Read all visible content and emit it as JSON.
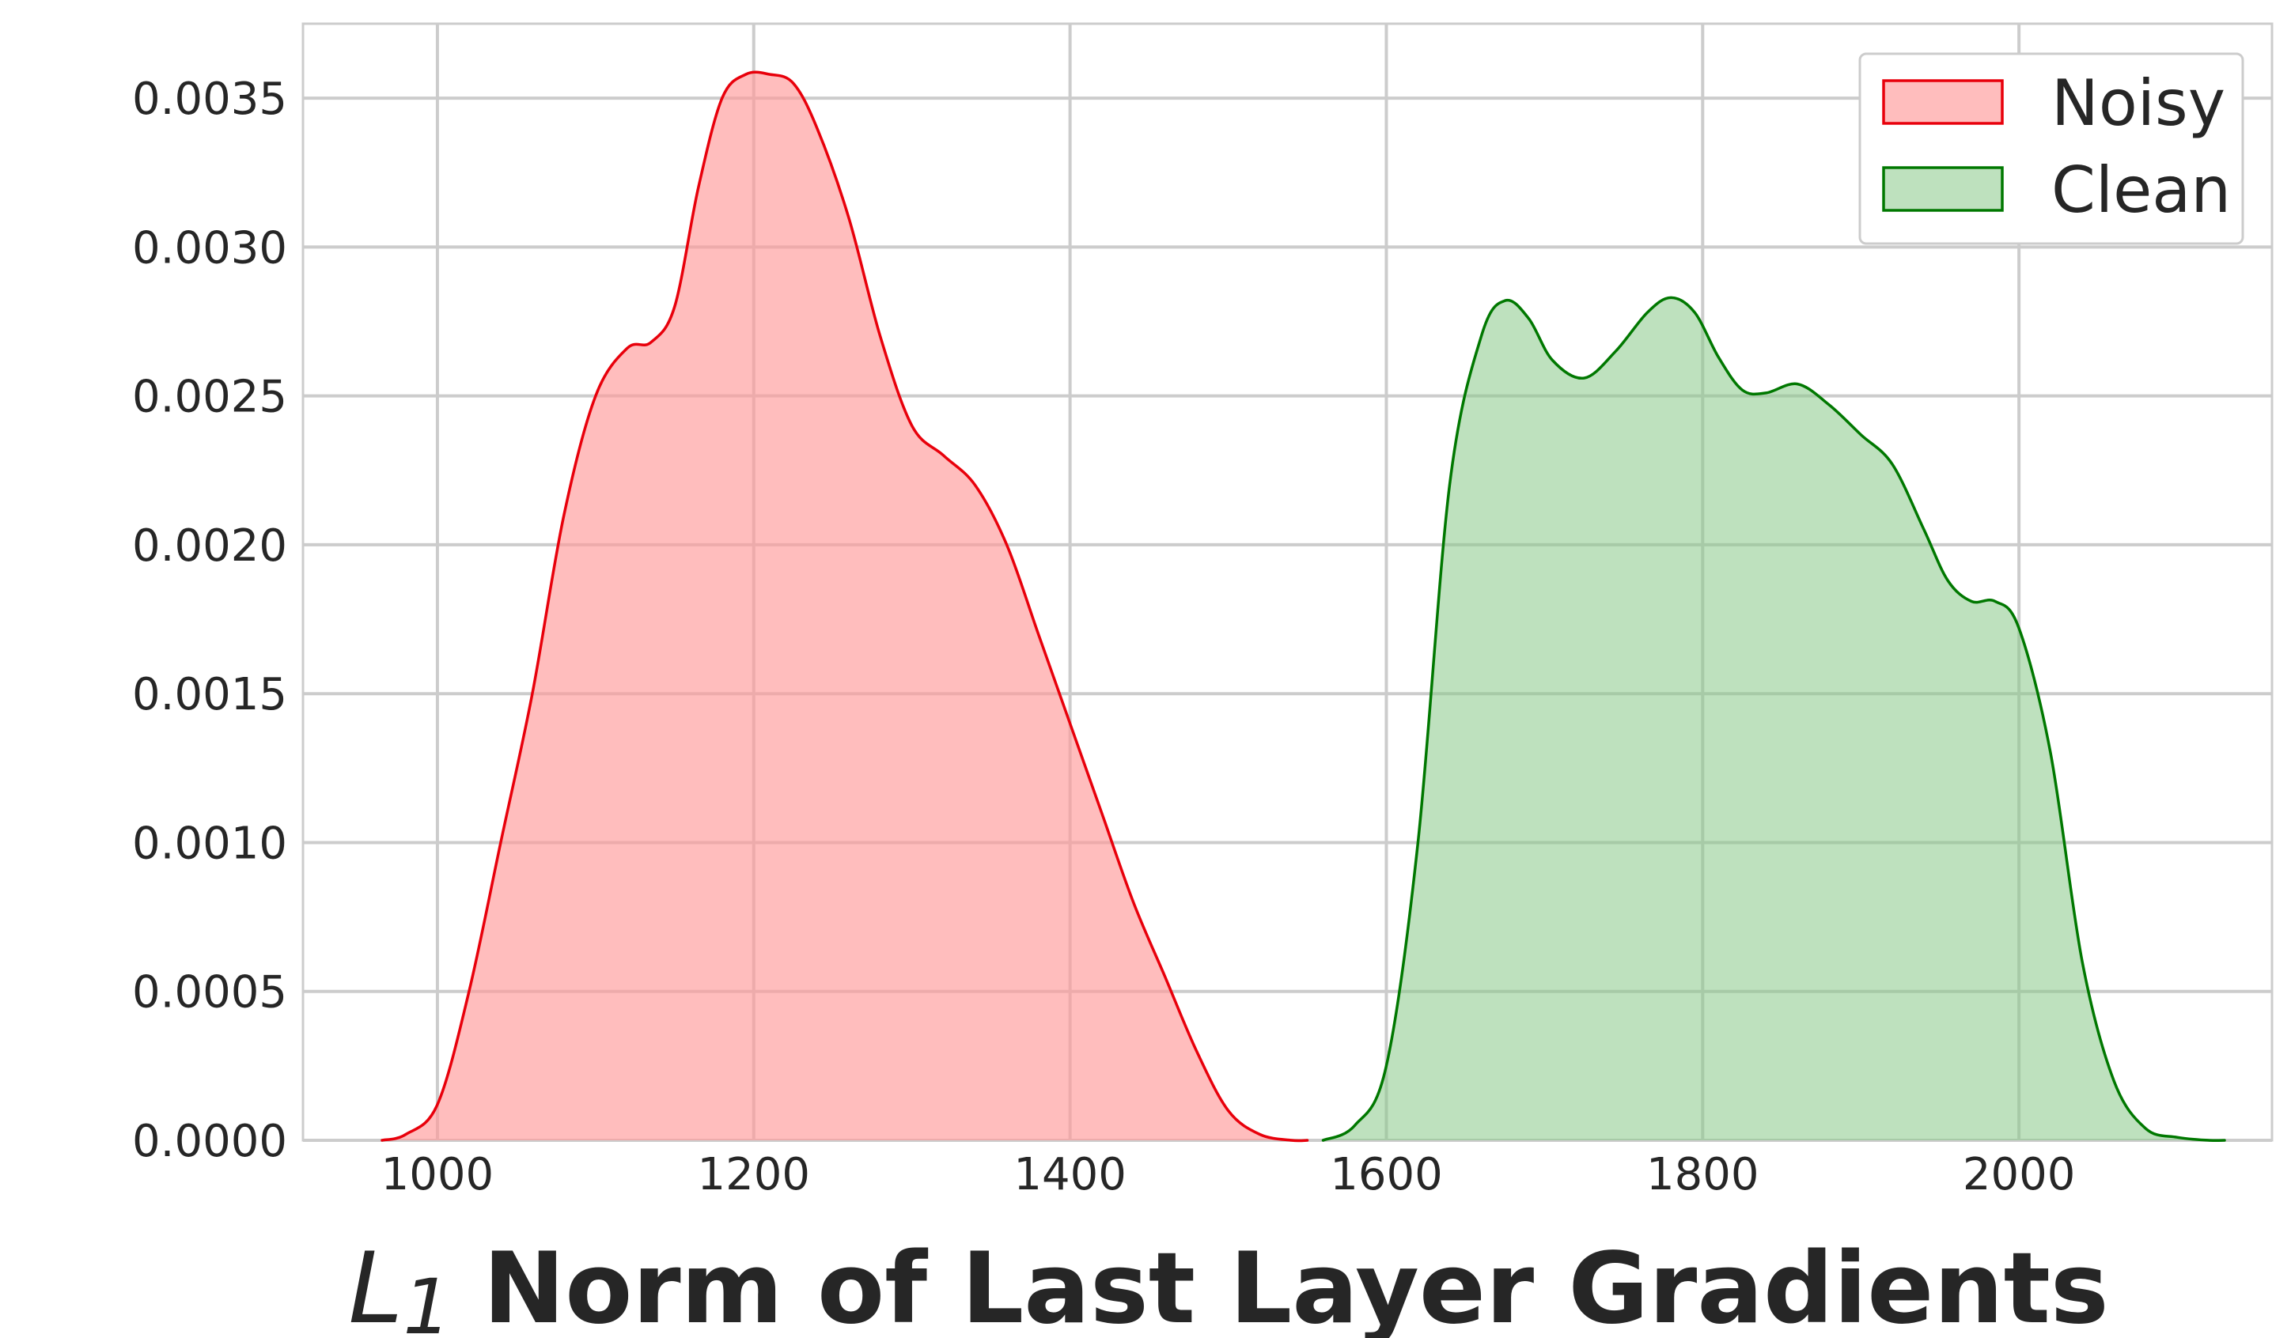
{
  "chart_data": {
    "type": "area",
    "title": "",
    "xlabel": {
      "symbol": "L",
      "subscript": "1",
      "text": "Norm of Last Layer Gradients"
    },
    "ylabel": "",
    "xlim": [
      915,
      2160
    ],
    "ylim": [
      0,
      0.00375
    ],
    "grid": true,
    "legend_position": "top-right",
    "x_ticks": [
      1000,
      1200,
      1400,
      1600,
      1800,
      2000
    ],
    "x_tick_labels": [
      "1000",
      "1200",
      "1400",
      "1600",
      "1800",
      "2000"
    ],
    "y_ticks": [
      0,
      0.0005,
      0.001,
      0.0015,
      0.002,
      0.0025,
      0.003,
      0.0035
    ],
    "y_tick_labels": [
      "0.0000",
      "0.0005",
      "0.0010",
      "0.0015",
      "0.0020",
      "0.0025",
      "0.0030",
      "0.0035"
    ],
    "series": [
      {
        "name": "Noisy",
        "line_color": "#e8000b",
        "fill_color": "#ff9999",
        "fill_opacity": 0.65,
        "x": [
          965,
          980,
          1000,
          1020,
          1040,
          1060,
          1080,
          1100,
          1120,
          1135,
          1150,
          1165,
          1180,
          1195,
          1210,
          1225,
          1240,
          1260,
          1280,
          1300,
          1320,
          1340,
          1360,
          1380,
          1400,
          1420,
          1440,
          1460,
          1480,
          1500,
          1520,
          1540,
          1550
        ],
        "y": [
          0.0,
          2e-05,
          0.00012,
          0.0005,
          0.001,
          0.0015,
          0.0021,
          0.0025,
          0.00266,
          0.00268,
          0.0028,
          0.0032,
          0.0035,
          0.00358,
          0.00358,
          0.00355,
          0.0034,
          0.0031,
          0.0027,
          0.0024,
          0.0023,
          0.0022,
          0.002,
          0.0017,
          0.0014,
          0.0011,
          0.0008,
          0.00055,
          0.0003,
          0.0001,
          2e-05,
          0.0,
          0.0
        ]
      },
      {
        "name": "Clean",
        "line_color": "#007800",
        "fill_color": "#88c888",
        "fill_opacity": 0.55,
        "x": [
          1560,
          1580,
          1600,
          1620,
          1640,
          1660,
          1675,
          1690,
          1705,
          1725,
          1745,
          1765,
          1780,
          1795,
          1810,
          1825,
          1840,
          1860,
          1880,
          1900,
          1920,
          1940,
          1955,
          1970,
          1985,
          2000,
          2020,
          2040,
          2060,
          2080,
          2100,
          2120,
          2130
        ],
        "y": [
          0.0,
          5e-05,
          0.00025,
          0.001,
          0.0022,
          0.0027,
          0.00282,
          0.00276,
          0.00262,
          0.00256,
          0.00265,
          0.00278,
          0.00283,
          0.00278,
          0.00263,
          0.00252,
          0.00251,
          0.00254,
          0.00247,
          0.00237,
          0.00227,
          0.00205,
          0.00188,
          0.00181,
          0.00181,
          0.00172,
          0.0013,
          0.0006,
          0.0002,
          4e-05,
          1e-05,
          0.0,
          0.0
        ]
      }
    ]
  }
}
